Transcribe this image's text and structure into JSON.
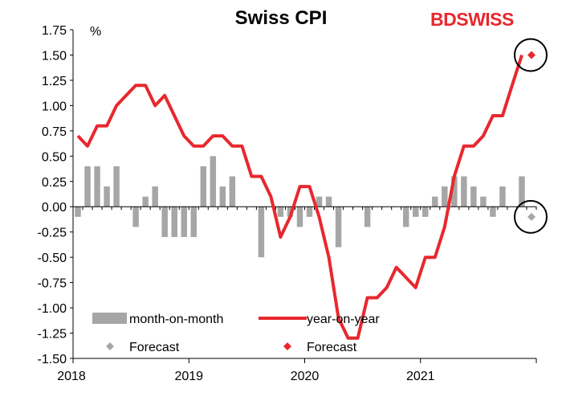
{
  "brand": {
    "part1": "BD",
    "part2": "SWISS",
    "color": "#e8282e"
  },
  "chart_data": {
    "type": "bar+line",
    "title": "Swiss CPI",
    "ylabel": "%",
    "xlabel": "",
    "ylim": [
      -1.5,
      1.75
    ],
    "yticks": [
      "1.75",
      "1.50",
      "1.25",
      "1.00",
      "0.75",
      "0.50",
      "0.25",
      "0.00",
      "-0.25",
      "-0.50",
      "-0.75",
      "-1.00",
      "-1.25",
      "-1.50"
    ],
    "xticks": [
      {
        "label": "2018",
        "month": 0
      },
      {
        "label": "2019",
        "month": 12
      },
      {
        "label": "2020",
        "month": 24
      },
      {
        "label": "2021",
        "month": 36
      }
    ],
    "months_total": 48,
    "grid": false,
    "bar_color": "#a6a6a6",
    "line_color": "#e8282e",
    "forecast_mom_color": "#a6a6a6",
    "forecast_yoy_color": "#e8282e",
    "series": [
      {
        "name": "month-on-month",
        "type": "bar",
        "values": [
          -0.1,
          0.4,
          0.4,
          0.2,
          0.4,
          0.0,
          -0.2,
          0.1,
          0.2,
          -0.3,
          -0.3,
          -0.3,
          -0.3,
          0.4,
          0.5,
          0.2,
          0.3,
          0.0,
          0.0,
          -0.5,
          0.0,
          -0.1,
          -0.1,
          -0.2,
          -0.1,
          0.1,
          0.1,
          -0.4,
          0.0,
          0.0,
          -0.2,
          0.0,
          0.0,
          0.0,
          -0.2,
          -0.1,
          -0.1,
          0.1,
          0.2,
          0.3,
          0.3,
          0.2,
          0.1,
          -0.1,
          0.2,
          0.0,
          0.3
        ]
      },
      {
        "name": "year-on-year",
        "type": "line",
        "values": [
          0.7,
          0.6,
          0.8,
          0.8,
          1.0,
          1.1,
          1.2,
          1.2,
          1.0,
          1.1,
          0.9,
          0.7,
          0.6,
          0.6,
          0.7,
          0.7,
          0.6,
          0.6,
          0.3,
          0.3,
          0.1,
          -0.3,
          -0.1,
          0.2,
          0.2,
          -0.1,
          -0.5,
          -1.1,
          -1.3,
          -1.3,
          -0.9,
          -0.9,
          -0.8,
          -0.6,
          -0.7,
          -0.8,
          -0.5,
          -0.5,
          -0.2,
          0.3,
          0.6,
          0.6,
          0.7,
          0.9,
          0.9,
          1.2,
          1.5
        ]
      }
    ],
    "forecast": [
      {
        "name": "Forecast",
        "series": "month-on-month",
        "month": 47,
        "value": -0.1
      },
      {
        "name": "Forecast",
        "series": "year-on-year",
        "month": 47,
        "value": 1.5
      }
    ],
    "legend": [
      {
        "label": "month-on-month",
        "symbol": "bar"
      },
      {
        "label": "year-on-year",
        "symbol": "line"
      },
      {
        "label": "Forecast",
        "symbol": "diamond-gray"
      },
      {
        "label": "Forecast",
        "symbol": "diamond-red"
      }
    ],
    "legend_position": "bottom-left",
    "annotations": [
      "circle around year-on-year forecast",
      "circle around month-on-month forecast"
    ]
  }
}
